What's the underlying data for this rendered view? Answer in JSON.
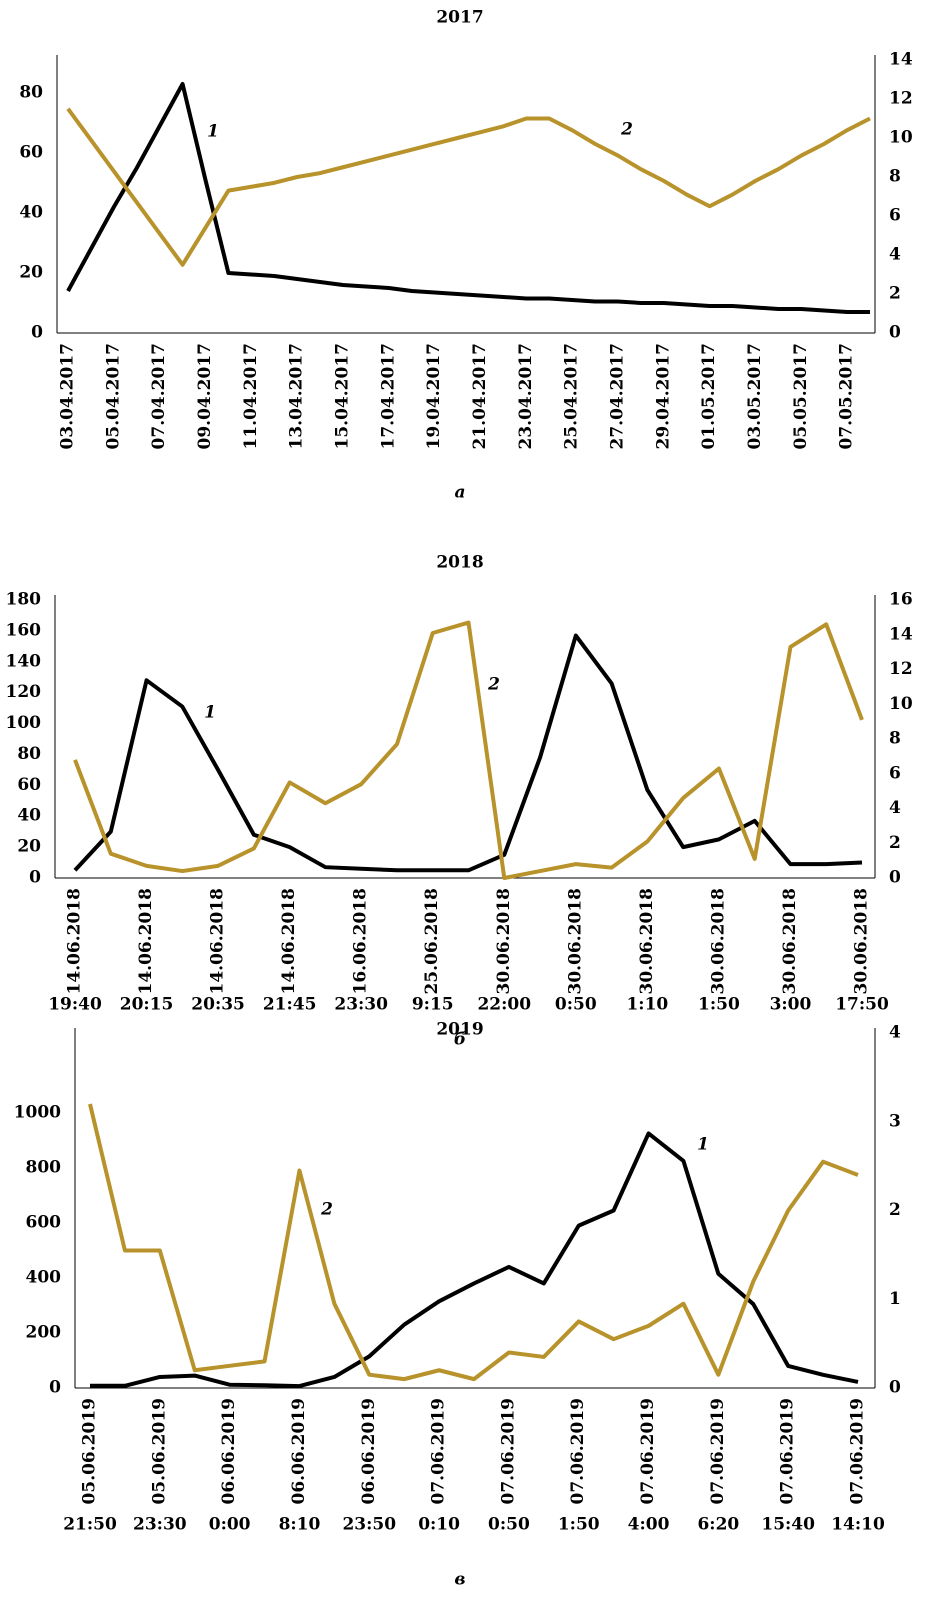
{
  "chart_data": [
    {
      "type": "line",
      "title": "2017",
      "caption": "а",
      "categories": [
        "03.04.2017",
        null,
        "05.04.2017",
        null,
        "07.04.2017",
        null,
        "09.04.2017",
        null,
        "11.04.2017",
        null,
        "13.04.2017",
        null,
        "15.04.2017",
        null,
        "17.04.2017",
        null,
        "19.04.2017",
        null,
        "21.04.2017",
        null,
        "23.04.2017",
        null,
        "25.04.2017",
        null,
        "27.04.2017",
        null,
        "29.04.2017",
        null,
        "01.05.2017",
        null,
        "03.05.2017",
        null,
        "05.05.2017",
        null,
        "07.05.2017",
        null
      ],
      "series": [
        {
          "name": "1",
          "color": "#000000",
          "values": [
            14,
            28,
            42,
            55,
            69,
            83,
            51,
            20,
            19.5,
            19,
            18,
            17,
            16,
            15.5,
            15,
            14,
            13.5,
            13,
            12.5,
            12,
            11.5,
            11.5,
            11,
            10.5,
            10.5,
            10,
            10,
            9.5,
            9,
            9,
            8.5,
            8,
            8,
            7.5,
            7,
            7
          ]
        },
        {
          "name": "2",
          "color": "#b8922a",
          "axis": "y2",
          "values": [
            11.5,
            9.9,
            8.3,
            6.7,
            5.1,
            3.5,
            5.4,
            7.3,
            7.5,
            7.7,
            8.0,
            8.2,
            8.5,
            8.8,
            9.1,
            9.4,
            9.7,
            10.0,
            10.3,
            10.6,
            11.0,
            11.0,
            10.4,
            9.7,
            9.1,
            8.4,
            7.8,
            7.1,
            6.5,
            7.1,
            7.8,
            8.4,
            9.1,
            9.7,
            10.4,
            11.0
          ]
        }
      ],
      "ylim": [
        0,
        91
      ],
      "yticks": [
        0,
        20,
        40,
        60,
        80
      ],
      "y2lim": [
        0,
        14
      ],
      "y2ticks": [
        0,
        2,
        4,
        6,
        8,
        10,
        12,
        14
      ]
    },
    {
      "type": "line",
      "title": "2018",
      "caption": "б",
      "categories": [
        [
          "14.06.2018",
          "19:40"
        ],
        null,
        [
          "14.06.2018",
          "20:15"
        ],
        null,
        [
          "14.06.2018",
          "20:35"
        ],
        null,
        [
          "14.06.2018",
          "21:45"
        ],
        null,
        [
          "16.06.2018",
          "23:30"
        ],
        null,
        [
          "25.06.2018",
          "9:15"
        ],
        null,
        [
          "30.06.2018",
          "22:00"
        ],
        null,
        [
          "30.06.2018",
          "0:50"
        ],
        null,
        [
          "30.06.2018",
          "1:10"
        ],
        null,
        [
          "30.06.2018",
          "1:50"
        ],
        null,
        [
          "30.06.2018",
          "3:00"
        ],
        null,
        [
          "30.06.2018",
          "17:50"
        ]
      ],
      "series": [
        {
          "name": "1",
          "color": "#000000",
          "values": [
            5,
            30,
            128,
            111,
            70,
            28,
            20,
            7,
            6,
            5,
            5,
            5,
            15,
            78,
            157,
            126,
            57,
            20,
            25,
            37,
            9,
            9,
            10
          ]
        },
        {
          "name": "2",
          "color": "#b8922a",
          "axis": "y2",
          "values": [
            6.8,
            1.4,
            0.7,
            0.4,
            0.7,
            1.7,
            5.5,
            4.3,
            5.4,
            7.7,
            14.1,
            14.7,
            0,
            0.4,
            0.8,
            0.6,
            2.1,
            4.6,
            6.3,
            1.1,
            13.3,
            14.6,
            9.1
          ]
        }
      ],
      "ylim": [
        0,
        180
      ],
      "yticks": [
        0,
        20,
        40,
        60,
        80,
        100,
        120,
        140,
        160,
        180
      ],
      "y2lim": [
        0,
        16
      ],
      "y2ticks": [
        0,
        2,
        4,
        6,
        8,
        10,
        12,
        14,
        16
      ]
    },
    {
      "type": "line",
      "title": "2019",
      "caption": "в",
      "categories": [
        [
          "05.06.2019",
          "21:50"
        ],
        null,
        [
          "05.06.2019",
          "23:30"
        ],
        null,
        [
          "06.06.2019",
          "0:00"
        ],
        null,
        [
          "06.06.2019",
          "8:10"
        ],
        null,
        [
          "06.06.2019",
          "23:50"
        ],
        null,
        [
          "07.06.2019",
          "0:10"
        ],
        null,
        [
          "07.06.2019",
          "0:50"
        ],
        null,
        [
          "07.06.2019",
          "1:50"
        ],
        null,
        [
          "07.06.2019",
          "4:00"
        ],
        null,
        [
          "07.06.2019",
          "6:20"
        ],
        null,
        [
          "07.06.2019",
          "15:40"
        ],
        null,
        [
          "07.06.2019",
          "14:10"
        ]
      ],
      "series": [
        {
          "name": "1",
          "color": "#000000",
          "values": [
            8,
            8,
            40,
            45,
            12,
            10,
            7,
            40,
            115,
            230,
            315,
            380,
            440,
            380,
            590,
            645,
            925,
            825,
            415,
            305,
            80,
            48,
            22
          ]
        },
        {
          "name": "2",
          "color": "#b8922a",
          "axis": "y2",
          "values": [
            3.2,
            1.55,
            1.55,
            0.2,
            0.25,
            0.3,
            2.45,
            0.95,
            0.15,
            0.1,
            0.2,
            0.1,
            0.4,
            0.35,
            0.75,
            0.55,
            0.7,
            0.95,
            0.15,
            1.2,
            2.0,
            2.55,
            2.4
          ]
        }
      ],
      "ylim": [
        0,
        1290
      ],
      "yticks": [
        0,
        200,
        400,
        600,
        800,
        1000
      ],
      "y2lim": [
        0,
        4
      ],
      "y2ticks": [
        0,
        1,
        2,
        3,
        4
      ]
    }
  ]
}
